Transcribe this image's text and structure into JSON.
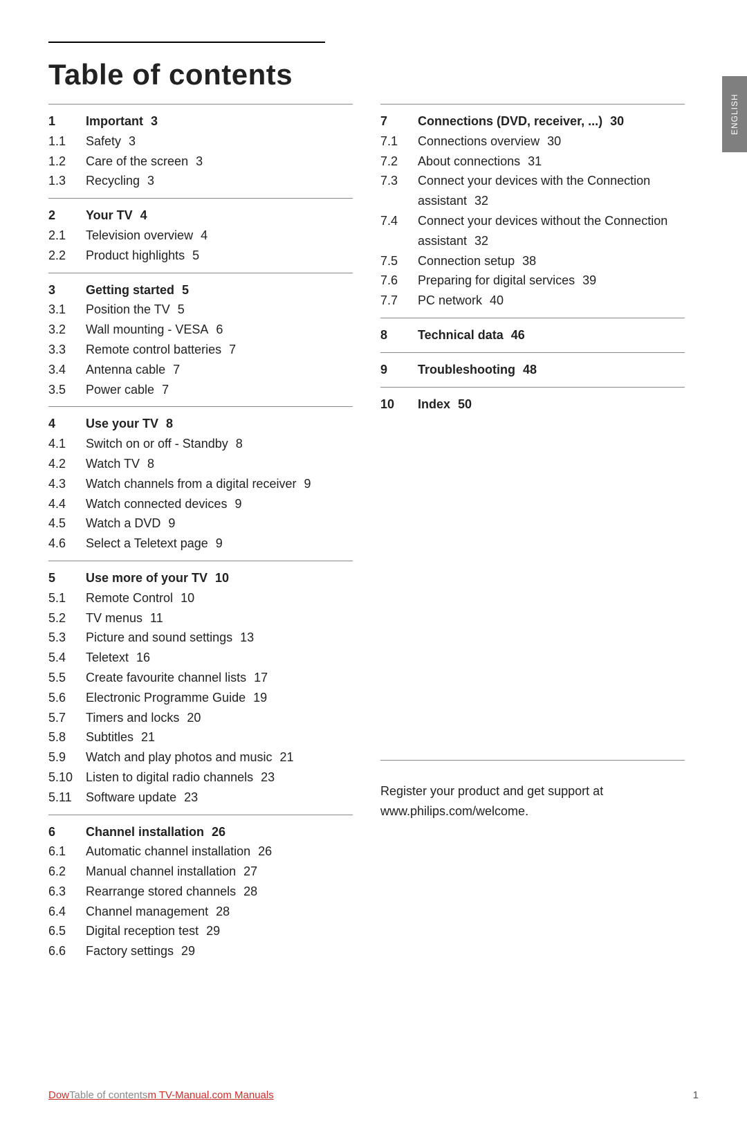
{
  "title": "Table of contents",
  "language_tab": "ENGLISH",
  "columns": [
    [
      {
        "header": {
          "num": "1",
          "title": "Important",
          "page": "3"
        },
        "items": [
          {
            "num": "1.1",
            "title": "Safety",
            "page": "3"
          },
          {
            "num": "1.2",
            "title": "Care of the screen",
            "page": "3"
          },
          {
            "num": "1.3",
            "title": "Recycling",
            "page": "3"
          }
        ]
      },
      {
        "header": {
          "num": "2",
          "title": "Your TV",
          "page": "4"
        },
        "items": [
          {
            "num": "2.1",
            "title": "Television overview",
            "page": "4"
          },
          {
            "num": "2.2",
            "title": "Product highlights",
            "page": "5"
          }
        ]
      },
      {
        "header": {
          "num": "3",
          "title": "Getting started",
          "page": "5"
        },
        "items": [
          {
            "num": "3.1",
            "title": "Position the TV",
            "page": "5"
          },
          {
            "num": "3.2",
            "title": "Wall mounting - VESA",
            "page": "6"
          },
          {
            "num": "3.3",
            "title": "Remote control batteries",
            "page": "7"
          },
          {
            "num": "3.4",
            "title": "Antenna cable",
            "page": "7"
          },
          {
            "num": "3.5",
            "title": "Power cable",
            "page": "7"
          }
        ]
      },
      {
        "header": {
          "num": "4",
          "title": "Use your TV",
          "page": "8"
        },
        "items": [
          {
            "num": "4.1",
            "title": "Switch on or off - Standby",
            "page": "8"
          },
          {
            "num": "4.2",
            "title": "Watch TV",
            "page": "8"
          },
          {
            "num": "4.3",
            "title": "Watch channels from a digital receiver",
            "page": "9"
          },
          {
            "num": "4.4",
            "title": "Watch connected devices",
            "page": "9"
          },
          {
            "num": "4.5",
            "title": "Watch a DVD",
            "page": "9"
          },
          {
            "num": "4.6",
            "title": "Select a Teletext page",
            "page": "9"
          }
        ]
      },
      {
        "header": {
          "num": "5",
          "title": "Use more of your TV",
          "page": "10"
        },
        "items": [
          {
            "num": "5.1",
            "title": "Remote Control",
            "page": "10"
          },
          {
            "num": "5.2",
            "title": "TV menus",
            "page": "11"
          },
          {
            "num": "5.3",
            "title": "Picture and sound settings",
            "page": "13"
          },
          {
            "num": "5.4",
            "title": "Teletext",
            "page": "16"
          },
          {
            "num": "5.5",
            "title": "Create favourite channel lists",
            "page": "17"
          },
          {
            "num": "5.6",
            "title": "Electronic Programme Guide",
            "page": "19"
          },
          {
            "num": "5.7",
            "title": "Timers and locks",
            "page": "20"
          },
          {
            "num": "5.8",
            "title": "Subtitles",
            "page": "21"
          },
          {
            "num": "5.9",
            "title": "Watch and play photos and music",
            "page": "21"
          },
          {
            "num": "5.10",
            "title": "Listen to digital radio channels",
            "page": "23"
          },
          {
            "num": "5.11",
            "title": "Software update",
            "page": "23"
          }
        ]
      },
      {
        "header": {
          "num": "6",
          "title": "Channel installation",
          "page": "26"
        },
        "items": [
          {
            "num": "6.1",
            "title": "Automatic channel installation",
            "page": "26"
          },
          {
            "num": "6.2",
            "title": "Manual channel installation",
            "page": "27"
          },
          {
            "num": "6.3",
            "title": "Rearrange stored channels",
            "page": "28"
          },
          {
            "num": "6.4",
            "title": "Channel management",
            "page": "28"
          },
          {
            "num": "6.5",
            "title": "Digital reception test",
            "page": "29"
          },
          {
            "num": "6.6",
            "title": "Factory settings",
            "page": "29"
          }
        ]
      }
    ],
    [
      {
        "header": {
          "num": "7",
          "title": "Connections (DVD, receiver, ...)",
          "page": "30"
        },
        "items": [
          {
            "num": "7.1",
            "title": "Connections overview",
            "page": "30"
          },
          {
            "num": "7.2",
            "title": "About connections",
            "page": "31"
          },
          {
            "num": "7.3",
            "title": "Connect your devices with the Connection assistant",
            "page": "32"
          },
          {
            "num": "7.4",
            "title": "Connect your devices without the Connection assistant",
            "page": "32"
          },
          {
            "num": "7.5",
            "title": "Connection setup",
            "page": "38"
          },
          {
            "num": "7.6",
            "title": "Preparing for digital services",
            "page": "39"
          },
          {
            "num": "7.7",
            "title": "PC network",
            "page": "40"
          }
        ]
      },
      {
        "header": {
          "num": "8",
          "title": "Technical data",
          "page": "46"
        },
        "items": []
      },
      {
        "header": {
          "num": "9",
          "title": "Troubleshooting",
          "page": "48"
        },
        "items": []
      },
      {
        "header": {
          "num": "10",
          "title": "Index",
          "page": "50"
        },
        "items": []
      }
    ]
  ],
  "support_text": "Register your product and get support at www.philips.com/welcome.",
  "footer_left_red_prefix": "Dow",
  "footer_left_grey": "Table of contents",
  "footer_left_red_suffix": "m TV-Manual.com Manuals",
  "footer_page_number": "1"
}
